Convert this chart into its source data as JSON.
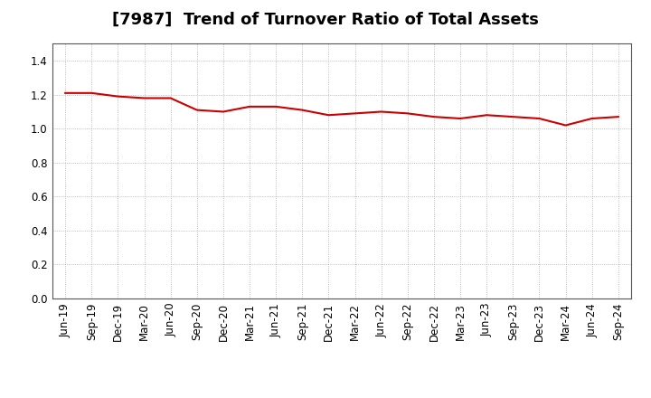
{
  "title": "[7987]  Trend of Turnover Ratio of Total Assets",
  "x_labels": [
    "Jun-19",
    "Sep-19",
    "Dec-19",
    "Mar-20",
    "Jun-20",
    "Sep-20",
    "Dec-20",
    "Mar-21",
    "Jun-21",
    "Sep-21",
    "Dec-21",
    "Mar-22",
    "Jun-22",
    "Sep-22",
    "Dec-22",
    "Mar-23",
    "Jun-23",
    "Sep-23",
    "Dec-23",
    "Mar-24",
    "Jun-24",
    "Sep-24"
  ],
  "values": [
    1.21,
    1.21,
    1.19,
    1.18,
    1.18,
    1.11,
    1.1,
    1.13,
    1.13,
    1.11,
    1.08,
    1.09,
    1.1,
    1.09,
    1.07,
    1.06,
    1.08,
    1.07,
    1.06,
    1.02,
    1.06,
    1.07
  ],
  "line_color": "#cc0000",
  "line_width": 1.5,
  "ylim": [
    0.0,
    1.5
  ],
  "yticks": [
    0.0,
    0.2,
    0.4,
    0.6,
    0.8,
    1.0,
    1.2,
    1.4
  ],
  "background_color": "#ffffff",
  "grid_color": "#aaaaaa",
  "title_fontsize": 13,
  "tick_fontsize": 8.5
}
